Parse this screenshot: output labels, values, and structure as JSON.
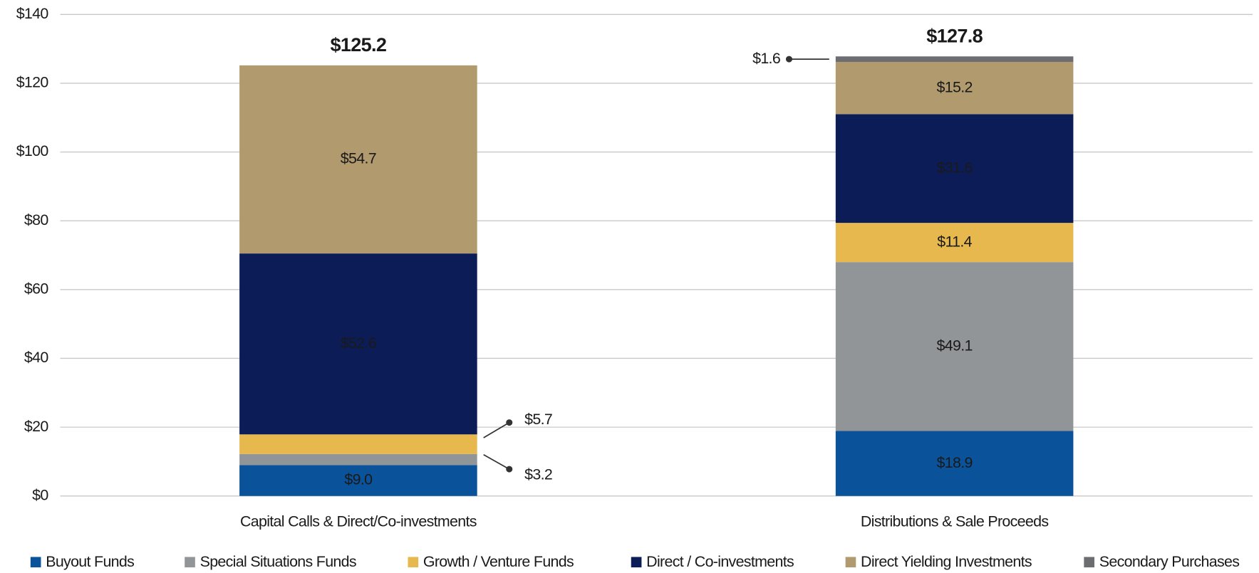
{
  "chart_data": {
    "type": "stacked_bar",
    "categories": [
      "Capital Calls & Direct/Co-investments",
      "Distributions & Sale Proceeds"
    ],
    "series": [
      {
        "name": "Buyout Funds",
        "color": "#0a5299",
        "values": [
          9.0,
          18.9
        ],
        "value_labels": [
          "$9.0",
          "$18.9"
        ]
      },
      {
        "name": "Special Situations Funds",
        "color": "#929598",
        "values": [
          3.2,
          49.1
        ],
        "value_labels": [
          "$3.2",
          "$49.1"
        ]
      },
      {
        "name": "Growth / Venture Funds",
        "color": "#e6b84d",
        "values": [
          5.7,
          11.4
        ],
        "value_labels": [
          "$5.7",
          "$11.4"
        ]
      },
      {
        "name": "Direct / Co-investments",
        "color": "#0b1c57",
        "values": [
          52.6,
          31.6
        ],
        "value_labels": [
          "$52.6",
          "$31.6"
        ]
      },
      {
        "name": "Direct Yielding Investments",
        "color": "#b09a6e",
        "values": [
          54.7,
          15.2
        ],
        "value_labels": [
          "$54.7",
          "$15.2"
        ]
      },
      {
        "name": "Secondary Purchases",
        "color": "#6b6d70",
        "values": [
          null,
          1.6
        ],
        "value_labels": [
          null,
          "$1.6"
        ]
      }
    ],
    "totals": [
      125.2,
      127.8
    ],
    "total_labels": [
      "$125.2",
      "$127.8"
    ],
    "ylim": [
      0,
      140
    ],
    "yticks": [
      {
        "value": 0,
        "label": "$0"
      },
      {
        "value": 20,
        "label": "$20"
      },
      {
        "value": 40,
        "label": "$40"
      },
      {
        "value": 60,
        "label": "$60"
      },
      {
        "value": 80,
        "label": "$80"
      },
      {
        "value": 100,
        "label": "$100"
      },
      {
        "value": 120,
        "label": "$120"
      },
      {
        "value": 140,
        "label": "$140"
      }
    ],
    "grid": true,
    "legend": "bottom"
  }
}
